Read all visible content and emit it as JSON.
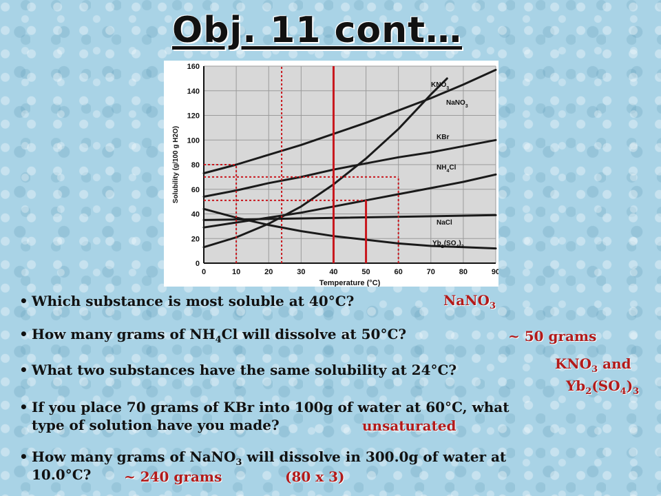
{
  "slide": {
    "title": "Obj. 11 cont…"
  },
  "questions": [
    {
      "text": "Which substance is most soluble at 40°C?"
    },
    {
      "text_a": "How many grams of NH",
      "sub": "4",
      "text_b": "Cl will dissolve at  50°C?"
    },
    {
      "text": "What two substances have the same solubility at 24°C?"
    },
    {
      "line1": "If you place 70 grams of KBr into 100g of water at 60°C, what",
      "line2": "type of solution have you made?"
    },
    {
      "text_a": "How many grams of NaNO",
      "sub": "3",
      "text_b": " will dissolve in 300.0g of water at",
      "line2": "10.0°C?"
    }
  ],
  "answers": {
    "a1": {
      "text": "NaNO",
      "sub": "3"
    },
    "a2": "~ 50 grams",
    "a3_line1": {
      "text": "KNO",
      "sub": "3",
      "tail": " and"
    },
    "a3_line2": {
      "a": "Yb",
      "sub1": "2",
      "b": "(SO",
      "sub2": "4",
      "c": ")",
      "sub3": "3"
    },
    "a4": "unsaturated",
    "a5a": "~ 240 grams",
    "a5b": "(80 x 3)"
  },
  "chart_data": {
    "type": "line",
    "xlabel": "Temperature (°C)",
    "ylabel": "Solubility (g/100 g H2O)",
    "xlim": [
      0,
      90
    ],
    "ylim": [
      0,
      160
    ],
    "x_ticks": [
      "0",
      "10",
      "20",
      "30",
      "40",
      "50",
      "60",
      "70",
      "80",
      "90"
    ],
    "y_ticks": [
      "0",
      "20",
      "40",
      "60",
      "80",
      "100",
      "120",
      "140",
      "160"
    ],
    "grid": true,
    "series": [
      {
        "name": "KNO3",
        "x": [
          0,
          10,
          20,
          30,
          40,
          50,
          60,
          70,
          75
        ],
        "y": [
          13,
          21,
          32,
          46,
          64,
          85,
          109,
          137,
          150
        ]
      },
      {
        "name": "NaNO3",
        "x": [
          0,
          10,
          20,
          30,
          40,
          50,
          60,
          70,
          80,
          90
        ],
        "y": [
          73,
          80,
          88,
          96,
          105,
          114,
          124,
          134,
          145,
          157
        ]
      },
      {
        "name": "KBr",
        "x": [
          0,
          10,
          20,
          30,
          40,
          50,
          60,
          70,
          80,
          90
        ],
        "y": [
          54,
          59,
          65,
          70,
          76,
          81,
          86,
          90,
          95,
          100
        ]
      },
      {
        "name": "NH4Cl",
        "x": [
          0,
          10,
          20,
          30,
          40,
          50,
          60,
          70,
          80,
          90
        ],
        "y": [
          29,
          33,
          37,
          41,
          46,
          51,
          56,
          61,
          66,
          72
        ]
      },
      {
        "name": "NaCl",
        "x": [
          0,
          90
        ],
        "y": [
          35,
          39
        ]
      },
      {
        "name": "Yb2(SO4)3",
        "x": [
          0,
          10,
          20,
          30,
          40,
          50,
          60,
          70,
          80,
          90
        ],
        "y": [
          44,
          37,
          31,
          26,
          22,
          19,
          16,
          14,
          13,
          12
        ]
      }
    ],
    "annotations": [
      {
        "type": "vline",
        "x": 40,
        "from": 0,
        "to": 160,
        "color": "#c8161c",
        "style": "solid"
      },
      {
        "type": "vline",
        "x": 50,
        "from": 0,
        "to": 51,
        "color": "#c8161c",
        "style": "solid"
      },
      {
        "type": "hline",
        "y": 51,
        "from": 0,
        "to": 50,
        "color": "#c8161c",
        "style": "dotted"
      },
      {
        "type": "vline",
        "x": 10,
        "from": 0,
        "to": 80,
        "color": "#c8161c",
        "style": "dotted"
      },
      {
        "type": "hline",
        "y": 80,
        "from": 0,
        "to": 10,
        "color": "#c8161c",
        "style": "dotted"
      },
      {
        "type": "vline",
        "x": 24,
        "from": 0,
        "to": 160,
        "color": "#c8161c",
        "style": "dotted"
      },
      {
        "type": "vline",
        "x": 60,
        "from": 0,
        "to": 70,
        "color": "#c8161c",
        "style": "dotted"
      },
      {
        "type": "hline",
        "y": 70,
        "from": 0,
        "to": 60,
        "color": "#c8161c",
        "style": "dotted"
      }
    ]
  }
}
